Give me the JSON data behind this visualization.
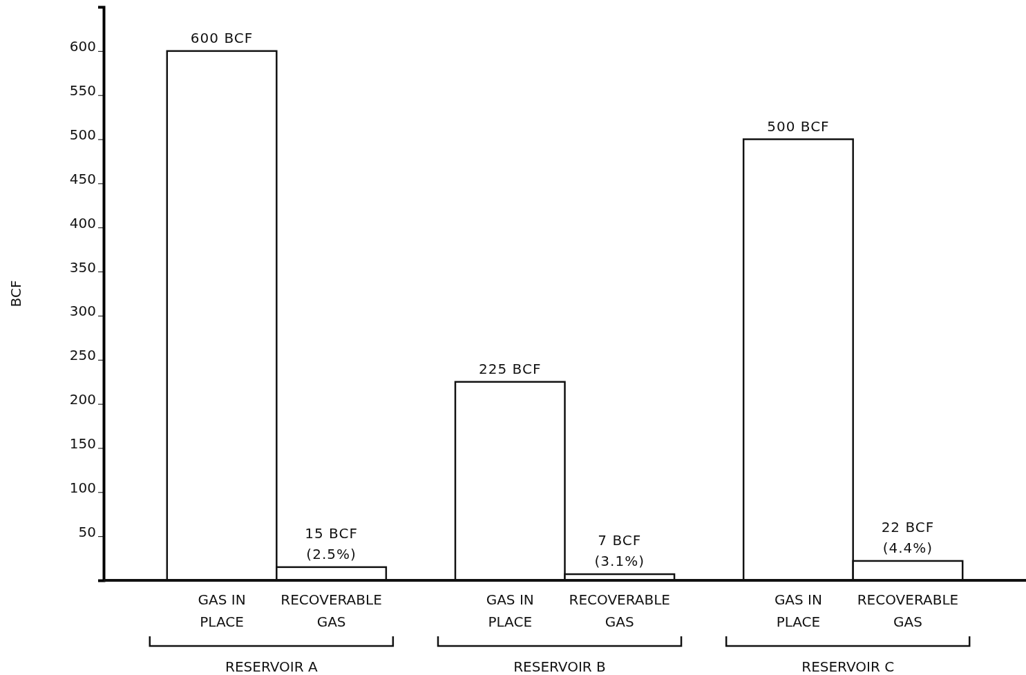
{
  "chart_data": {
    "type": "bar",
    "ylabel": "BCF",
    "categories": [
      "GAS IN PLACE",
      "RECOVERABLE GAS",
      "GAS IN PLACE",
      "RECOVERABLE GAS",
      "GAS IN PLACE",
      "RECOVERABLE GAS"
    ],
    "values": [
      600,
      15,
      225,
      7,
      500,
      22
    ],
    "color": "#ffffff",
    "value_labels": [
      "600 BCF",
      "15 BCF\n(2.5%)",
      "225 BCF",
      "7 BCF\n(3.1%)",
      "500 BCF",
      "22 BCF\n(4.4%)"
    ],
    "ylim": [
      0,
      650
    ],
    "yticks": [
      {
        "value": 0,
        "label": null
      },
      50,
      100,
      150,
      200,
      250,
      300,
      350,
      400,
      450,
      500,
      550,
      600
    ],
    "annotations": [
      "RESERVOIR A",
      "RESERVOIR B",
      "RESERVOIR C"
    ],
    "grid": false
  }
}
